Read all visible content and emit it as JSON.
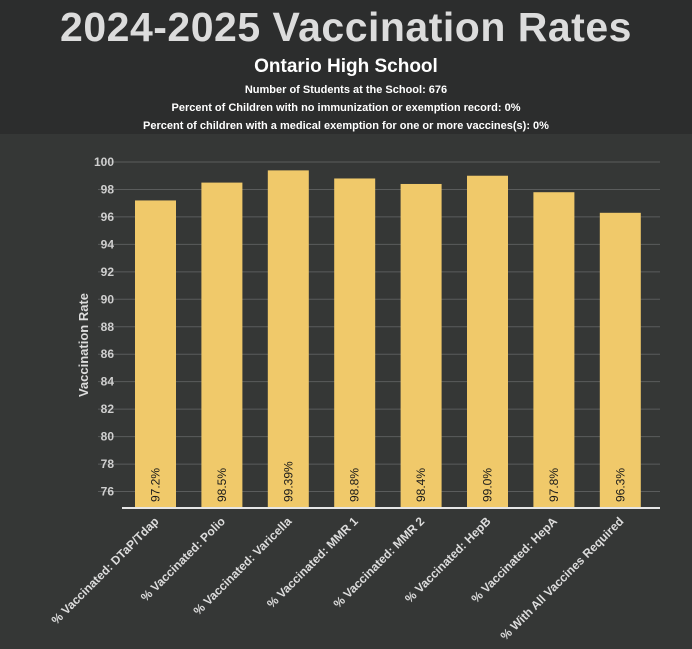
{
  "header": {
    "title": "2024-2025 Vaccination Rates",
    "subtitle": "Ontario High School",
    "info_lines": [
      "Number of Students at the School: 676",
      "Percent of Children with no immunization or exemption record: 0%",
      "Percent of children with a medical exemption for one or more vaccines(s): 0%"
    ]
  },
  "colors": {
    "bar": "#f0c96a",
    "background": "#353736",
    "header_background": "#2c2d2d",
    "grid": "#5a5c5c"
  },
  "chart_data": {
    "type": "bar",
    "title": "2024-2025 Vaccination Rates",
    "xlabel": "",
    "ylabel": "Vaccination Rate",
    "ylim": [
      74.8,
      100
    ],
    "yticks": [
      76,
      78,
      80,
      82,
      84,
      86,
      88,
      90,
      92,
      94,
      96,
      98,
      100
    ],
    "grid": true,
    "categories": [
      "% Vaccinated: DTaP/Tdap",
      "% Vaccinated: Polio",
      "% Vaccinated: Varicella",
      "% Vaccinated: MMR 1",
      "% Vaccinated: MMR 2",
      "% Vaccinated: HepB",
      "% Vaccinated: HepA",
      "% With All Vaccines Required"
    ],
    "values": [
      97.2,
      98.5,
      99.39,
      98.8,
      98.4,
      99.0,
      97.8,
      96.3
    ],
    "data_labels": [
      "97.2%",
      "98.5%",
      "99.39%",
      "98.8%",
      "98.4%",
      "99.0%",
      "97.8%",
      "96.3%"
    ]
  }
}
